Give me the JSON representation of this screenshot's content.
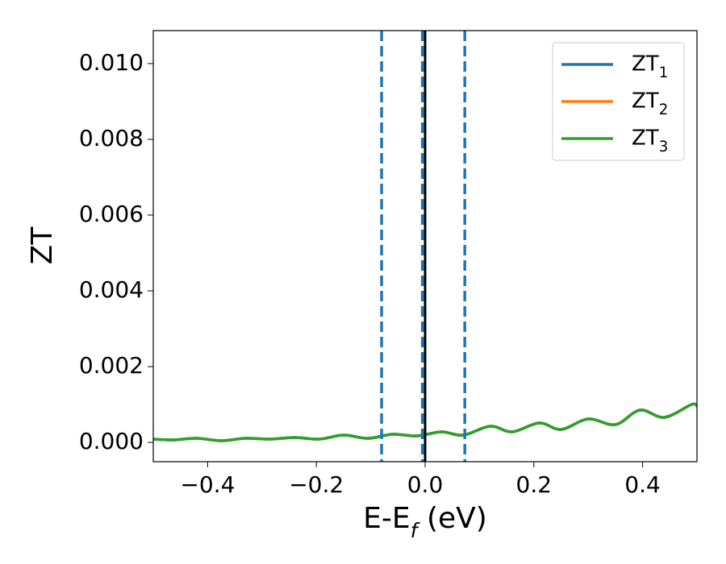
{
  "chart_data": {
    "type": "line",
    "xlabel": "E-E_f (eV)",
    "ylabel": "ZT",
    "x": [
      -0.5,
      -0.465,
      -0.42,
      -0.375,
      -0.33,
      -0.285,
      -0.24,
      -0.195,
      -0.15,
      -0.105,
      -0.06,
      -0.015,
      0.03,
      0.07,
      0.12,
      0.16,
      0.21,
      0.25,
      0.3,
      0.35,
      0.395,
      0.44,
      0.49,
      0.5
    ],
    "series": [
      {
        "name": "ZT_1",
        "color": "#1f77b4",
        "values": [
          8.5e-05,
          6.4e-05,
          0.000106,
          4.3e-05,
          0.000106,
          8.5e-05,
          0.000128,
          8.5e-05,
          0.000191,
          0.000106,
          0.000213,
          0.00017,
          0.000277,
          0.000191,
          0.000426,
          0.000277,
          0.000511,
          0.00034,
          0.000617,
          0.000468,
          0.000851,
          0.00066,
          0.001,
          0.000957
        ]
      },
      {
        "name": "ZT_2",
        "color": "#ff7f0e",
        "values": [
          8.5e-05,
          6.4e-05,
          0.000106,
          4.3e-05,
          0.000106,
          8.5e-05,
          0.000128,
          8.5e-05,
          0.000191,
          0.000106,
          0.000213,
          0.00017,
          0.000277,
          0.000191,
          0.000426,
          0.000277,
          0.000511,
          0.00034,
          0.000617,
          0.000468,
          0.000851,
          0.00066,
          0.001,
          0.000957
        ]
      },
      {
        "name": "ZT_3",
        "color": "#2ca02c",
        "values": [
          8.5e-05,
          6.4e-05,
          0.000106,
          4.3e-05,
          0.000106,
          8.5e-05,
          0.000128,
          8.5e-05,
          0.000191,
          0.000106,
          0.000213,
          0.00017,
          0.000277,
          0.000191,
          0.000426,
          0.000277,
          0.000511,
          0.00034,
          0.000617,
          0.000468,
          0.000851,
          0.00066,
          0.001,
          0.000957
        ]
      }
    ],
    "vlines": [
      {
        "x": -0.08,
        "color": "#1f77b4",
        "dashed": true
      },
      {
        "x": -0.005,
        "color": "#1f77b4",
        "dashed": true
      },
      {
        "x": 0.073,
        "color": "#1f77b4",
        "dashed": true
      },
      {
        "x": 0,
        "color": "#000000",
        "dashed": false
      }
    ],
    "xlim": [
      -0.5,
      0.5
    ],
    "ylim": [
      -0.00051,
      0.01087
    ],
    "xticks": [
      {
        "value": -0.4,
        "label": "−0.4"
      },
      {
        "value": -0.2,
        "label": "−0.2"
      },
      {
        "value": 0,
        "label": "0.0"
      },
      0.2,
      0.4
    ],
    "yticks": [
      {
        "value": 0,
        "label": "0.000"
      },
      0.002,
      0.004,
      0.006,
      0.008,
      {
        "value": 0.01,
        "label": "0.010"
      }
    ],
    "legend": "upper right",
    "grid": false
  }
}
